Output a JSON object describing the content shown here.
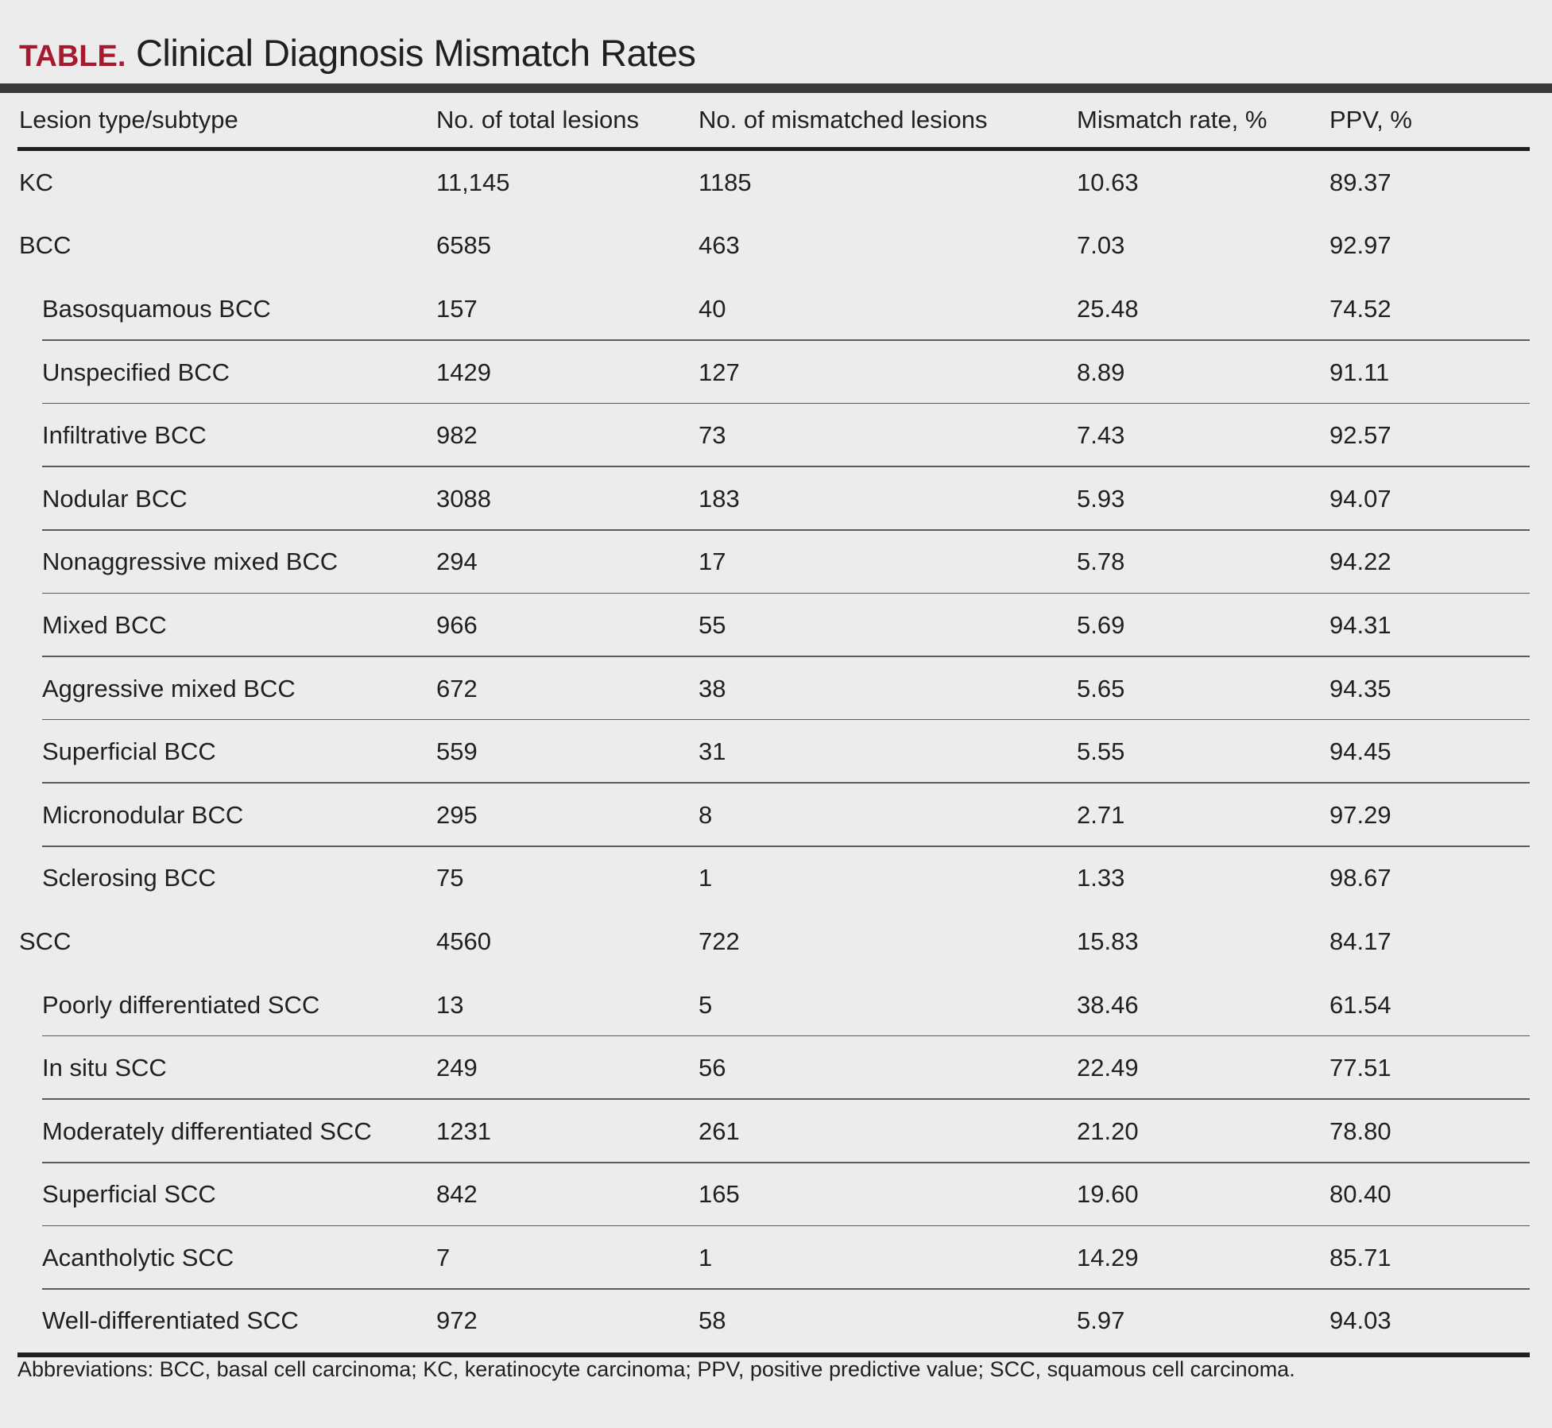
{
  "title": {
    "label": "TABLE.",
    "text": "Clinical Diagnosis Mismatch Rates"
  },
  "table": {
    "headers": [
      "Lesion type/subtype",
      "No. of total lesions",
      "No. of mismatched lesions",
      "Mismatch rate, %",
      "PPV, %"
    ],
    "rows": [
      {
        "name": "KC",
        "total": "11,145",
        "mismatched": "1185",
        "rate": "10.63",
        "ppv": "89.37",
        "level": 0,
        "divider": false
      },
      {
        "name": "BCC",
        "total": "6585",
        "mismatched": "463",
        "rate": "7.03",
        "ppv": "92.97",
        "level": 0,
        "divider": false
      },
      {
        "name": "Basosquamous BCC",
        "total": "157",
        "mismatched": "40",
        "rate": "25.48",
        "ppv": "74.52",
        "level": 1,
        "divider": true
      },
      {
        "name": "Unspecified BCC",
        "total": "1429",
        "mismatched": "127",
        "rate": "8.89",
        "ppv": "91.11",
        "level": 1,
        "divider": true
      },
      {
        "name": "Infiltrative BCC",
        "total": "982",
        "mismatched": "73",
        "rate": "7.43",
        "ppv": "92.57",
        "level": 1,
        "divider": true
      },
      {
        "name": "Nodular BCC",
        "total": "3088",
        "mismatched": "183",
        "rate": "5.93",
        "ppv": "94.07",
        "level": 1,
        "divider": true
      },
      {
        "name": "Nonaggressive mixed BCC",
        "total": "294",
        "mismatched": "17",
        "rate": "5.78",
        "ppv": "94.22",
        "level": 1,
        "divider": true
      },
      {
        "name": "Mixed BCC",
        "total": "966",
        "mismatched": "55",
        "rate": "5.69",
        "ppv": "94.31",
        "level": 1,
        "divider": true
      },
      {
        "name": "Aggressive mixed BCC",
        "total": "672",
        "mismatched": "38",
        "rate": "5.65",
        "ppv": "94.35",
        "level": 1,
        "divider": true
      },
      {
        "name": "Superficial BCC",
        "total": "559",
        "mismatched": "31",
        "rate": "5.55",
        "ppv": "94.45",
        "level": 1,
        "divider": true
      },
      {
        "name": "Micronodular BCC",
        "total": "295",
        "mismatched": "8",
        "rate": "2.71",
        "ppv": "97.29",
        "level": 1,
        "divider": true
      },
      {
        "name": "Sclerosing BCC",
        "total": "75",
        "mismatched": "1",
        "rate": "1.33",
        "ppv": "98.67",
        "level": 1,
        "divider": false
      },
      {
        "name": "SCC",
        "total": "4560",
        "mismatched": "722",
        "rate": "15.83",
        "ppv": "84.17",
        "level": 0,
        "divider": false
      },
      {
        "name": "Poorly differentiated SCC",
        "total": "13",
        "mismatched": "5",
        "rate": "38.46",
        "ppv": "61.54",
        "level": 1,
        "divider": true
      },
      {
        "name": "In situ SCC",
        "total": "249",
        "mismatched": "56",
        "rate": "22.49",
        "ppv": "77.51",
        "level": 1,
        "divider": true
      },
      {
        "name": "Moderately differentiated SCC",
        "total": "1231",
        "mismatched": "261",
        "rate": "21.20",
        "ppv": "78.80",
        "level": 1,
        "divider": true
      },
      {
        "name": "Superficial SCC",
        "total": "842",
        "mismatched": "165",
        "rate": "19.60",
        "ppv": "80.40",
        "level": 1,
        "divider": true
      },
      {
        "name": "Acantholytic SCC",
        "total": "7",
        "mismatched": "1",
        "rate": "14.29",
        "ppv": "85.71",
        "level": 1,
        "divider": true
      },
      {
        "name": "Well-differentiated SCC",
        "total": "972",
        "mismatched": "58",
        "rate": "5.97",
        "ppv": "94.03",
        "level": 1,
        "divider": false
      }
    ]
  },
  "footnote": "Abbreviations: BCC, basal cell carcinoma; KC, keratinocyte carcinoma; PPV, positive predictive value; SCC, squamous cell carcinoma.",
  "colors": {
    "label": "#a6192e",
    "text": "#231f20",
    "background": "#ececec",
    "rule": "#3a3a3a"
  }
}
